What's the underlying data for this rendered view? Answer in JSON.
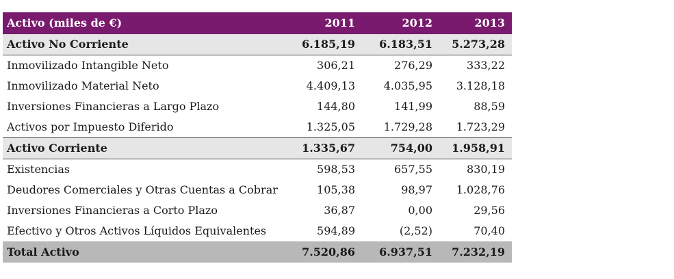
{
  "table": {
    "header": {
      "label": "Activo (miles de €)",
      "years": [
        "2011",
        "2012",
        "2013"
      ]
    },
    "rows": [
      {
        "type": "section",
        "label": "Activo No Corriente",
        "values": [
          "6.185,19",
          "6.183,51",
          "5.273,28"
        ]
      },
      {
        "type": "item",
        "label": "Inmovilizado Intangible Neto",
        "values": [
          "306,21",
          "276,29",
          "333,22"
        ]
      },
      {
        "type": "item",
        "label": "Inmovilizado Material Neto",
        "values": [
          "4.409,13",
          "4.035,95",
          "3.128,18"
        ]
      },
      {
        "type": "item",
        "label": "Inversiones Financieras a Largo Plazo",
        "values": [
          "144,80",
          "141,99",
          "88,59"
        ]
      },
      {
        "type": "item",
        "label": "Activos por Impuesto Diferido",
        "values": [
          "1.325,05",
          "1.729,28",
          "1.723,29"
        ]
      },
      {
        "type": "section",
        "label": "Activo Corriente",
        "values": [
          "1.335,67",
          "754,00",
          "1.958,91"
        ]
      },
      {
        "type": "item",
        "label": "Existencias",
        "values": [
          "598,53",
          "657,55",
          "830,19"
        ]
      },
      {
        "type": "item",
        "label": "Deudores Comerciales y Otras Cuentas a Cobrar",
        "values": [
          "105,38",
          "98,97",
          "1.028,76"
        ]
      },
      {
        "type": "item",
        "label": "Inversiones Financieras a Corto Plazo",
        "values": [
          "36,87",
          "0,00",
          "29,56"
        ]
      },
      {
        "type": "item",
        "label": "Efectivo y Otros Activos Líquidos Equivalentes",
        "values": [
          "594,89",
          "(2,52)",
          "70,40"
        ]
      },
      {
        "type": "total",
        "label": "Total Activo",
        "values": [
          "7.520,86",
          "6.937,51",
          "7.232,19"
        ]
      }
    ]
  },
  "colors": {
    "header_bg": "#7a1a6e",
    "header_text": "#ffffff",
    "section_bg": "#e6e6e6",
    "total_bg": "#b8b8b8"
  }
}
